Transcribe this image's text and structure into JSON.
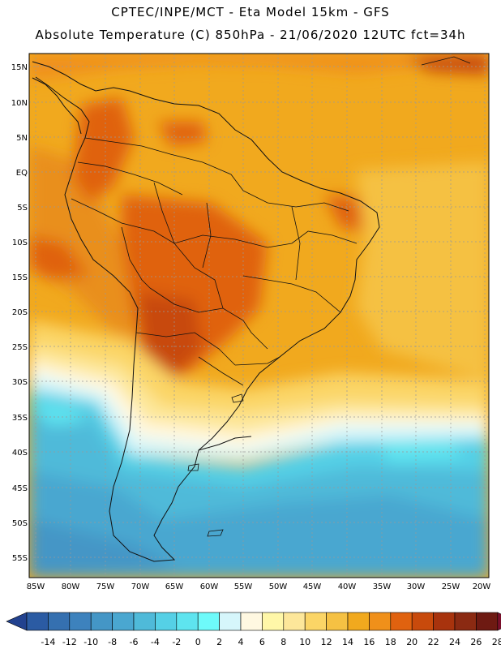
{
  "header": {
    "title_line1": "CPTEC/INPE/MCT -  Eta Model 15km - GFS",
    "title_line2": "Absolute Temperature (C) 850hPa - 21/06/2020 12UTC fct=34h"
  },
  "map": {
    "lat_labels": [
      "15N",
      "10N",
      "5N",
      "EQ",
      "5S",
      "10S",
      "15S",
      "20S",
      "25S",
      "30S",
      "35S",
      "40S",
      "45S",
      "50S",
      "55S"
    ],
    "lon_labels": [
      "85W",
      "80W",
      "75W",
      "70W",
      "65W",
      "60W",
      "55W",
      "50W",
      "45W",
      "40W",
      "35W",
      "30W",
      "25W",
      "20W"
    ]
  },
  "colorbar": {
    "labels": [
      "-14",
      "-12",
      "-10",
      "-8",
      "-6",
      "-4",
      "-2",
      "0",
      "2",
      "4",
      "6",
      "8",
      "10",
      "12",
      "14",
      "16",
      "18",
      "20",
      "22",
      "24",
      "26",
      "28"
    ],
    "colors": [
      "#22428f",
      "#2b5ba3",
      "#3570b0",
      "#3d82bd",
      "#4496c6",
      "#4aa7d0",
      "#4fbad9",
      "#55d0e6",
      "#5ee4ef",
      "#6efafa",
      "#d6f6fb",
      "#fff8e1",
      "#fff7a8",
      "#fde79a",
      "#fbd566",
      "#f5c143",
      "#f1a91e",
      "#f0901a",
      "#e0620f",
      "#c84a0c",
      "#a8330d",
      "#8b2a12",
      "#6e1a12",
      "#7a0f2b"
    ]
  }
}
